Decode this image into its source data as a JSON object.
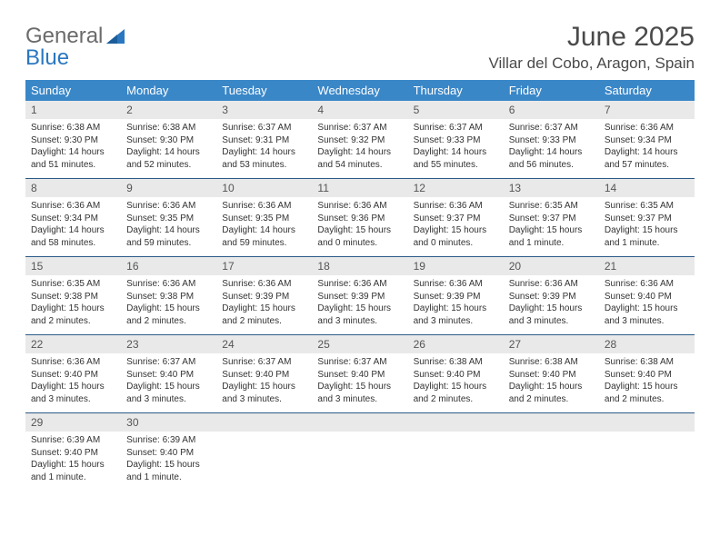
{
  "logo": {
    "part1": "General",
    "part2": "Blue"
  },
  "title": "June 2025",
  "location": "Villar del Cobo, Aragon, Spain",
  "colors": {
    "header_bg": "#3a87c8",
    "header_text": "#ffffff",
    "daynum_bg": "#e9e9e9",
    "week_border": "#2a5a88",
    "logo_gray": "#6b6b6b",
    "logo_blue": "#2a77c0",
    "body_text": "#333333"
  },
  "days_of_week": [
    "Sunday",
    "Monday",
    "Tuesday",
    "Wednesday",
    "Thursday",
    "Friday",
    "Saturday"
  ],
  "weeks": [
    {
      "nums": [
        "1",
        "2",
        "3",
        "4",
        "5",
        "6",
        "7"
      ],
      "cells": [
        {
          "sunrise": "Sunrise: 6:38 AM",
          "sunset": "Sunset: 9:30 PM",
          "day1": "Daylight: 14 hours",
          "day2": "and 51 minutes."
        },
        {
          "sunrise": "Sunrise: 6:38 AM",
          "sunset": "Sunset: 9:30 PM",
          "day1": "Daylight: 14 hours",
          "day2": "and 52 minutes."
        },
        {
          "sunrise": "Sunrise: 6:37 AM",
          "sunset": "Sunset: 9:31 PM",
          "day1": "Daylight: 14 hours",
          "day2": "and 53 minutes."
        },
        {
          "sunrise": "Sunrise: 6:37 AM",
          "sunset": "Sunset: 9:32 PM",
          "day1": "Daylight: 14 hours",
          "day2": "and 54 minutes."
        },
        {
          "sunrise": "Sunrise: 6:37 AM",
          "sunset": "Sunset: 9:33 PM",
          "day1": "Daylight: 14 hours",
          "day2": "and 55 minutes."
        },
        {
          "sunrise": "Sunrise: 6:37 AM",
          "sunset": "Sunset: 9:33 PM",
          "day1": "Daylight: 14 hours",
          "day2": "and 56 minutes."
        },
        {
          "sunrise": "Sunrise: 6:36 AM",
          "sunset": "Sunset: 9:34 PM",
          "day1": "Daylight: 14 hours",
          "day2": "and 57 minutes."
        }
      ]
    },
    {
      "nums": [
        "8",
        "9",
        "10",
        "11",
        "12",
        "13",
        "14"
      ],
      "cells": [
        {
          "sunrise": "Sunrise: 6:36 AM",
          "sunset": "Sunset: 9:34 PM",
          "day1": "Daylight: 14 hours",
          "day2": "and 58 minutes."
        },
        {
          "sunrise": "Sunrise: 6:36 AM",
          "sunset": "Sunset: 9:35 PM",
          "day1": "Daylight: 14 hours",
          "day2": "and 59 minutes."
        },
        {
          "sunrise": "Sunrise: 6:36 AM",
          "sunset": "Sunset: 9:35 PM",
          "day1": "Daylight: 14 hours",
          "day2": "and 59 minutes."
        },
        {
          "sunrise": "Sunrise: 6:36 AM",
          "sunset": "Sunset: 9:36 PM",
          "day1": "Daylight: 15 hours",
          "day2": "and 0 minutes."
        },
        {
          "sunrise": "Sunrise: 6:36 AM",
          "sunset": "Sunset: 9:37 PM",
          "day1": "Daylight: 15 hours",
          "day2": "and 0 minutes."
        },
        {
          "sunrise": "Sunrise: 6:35 AM",
          "sunset": "Sunset: 9:37 PM",
          "day1": "Daylight: 15 hours",
          "day2": "and 1 minute."
        },
        {
          "sunrise": "Sunrise: 6:35 AM",
          "sunset": "Sunset: 9:37 PM",
          "day1": "Daylight: 15 hours",
          "day2": "and 1 minute."
        }
      ]
    },
    {
      "nums": [
        "15",
        "16",
        "17",
        "18",
        "19",
        "20",
        "21"
      ],
      "cells": [
        {
          "sunrise": "Sunrise: 6:35 AM",
          "sunset": "Sunset: 9:38 PM",
          "day1": "Daylight: 15 hours",
          "day2": "and 2 minutes."
        },
        {
          "sunrise": "Sunrise: 6:36 AM",
          "sunset": "Sunset: 9:38 PM",
          "day1": "Daylight: 15 hours",
          "day2": "and 2 minutes."
        },
        {
          "sunrise": "Sunrise: 6:36 AM",
          "sunset": "Sunset: 9:39 PM",
          "day1": "Daylight: 15 hours",
          "day2": "and 2 minutes."
        },
        {
          "sunrise": "Sunrise: 6:36 AM",
          "sunset": "Sunset: 9:39 PM",
          "day1": "Daylight: 15 hours",
          "day2": "and 3 minutes."
        },
        {
          "sunrise": "Sunrise: 6:36 AM",
          "sunset": "Sunset: 9:39 PM",
          "day1": "Daylight: 15 hours",
          "day2": "and 3 minutes."
        },
        {
          "sunrise": "Sunrise: 6:36 AM",
          "sunset": "Sunset: 9:39 PM",
          "day1": "Daylight: 15 hours",
          "day2": "and 3 minutes."
        },
        {
          "sunrise": "Sunrise: 6:36 AM",
          "sunset": "Sunset: 9:40 PM",
          "day1": "Daylight: 15 hours",
          "day2": "and 3 minutes."
        }
      ]
    },
    {
      "nums": [
        "22",
        "23",
        "24",
        "25",
        "26",
        "27",
        "28"
      ],
      "cells": [
        {
          "sunrise": "Sunrise: 6:36 AM",
          "sunset": "Sunset: 9:40 PM",
          "day1": "Daylight: 15 hours",
          "day2": "and 3 minutes."
        },
        {
          "sunrise": "Sunrise: 6:37 AM",
          "sunset": "Sunset: 9:40 PM",
          "day1": "Daylight: 15 hours",
          "day2": "and 3 minutes."
        },
        {
          "sunrise": "Sunrise: 6:37 AM",
          "sunset": "Sunset: 9:40 PM",
          "day1": "Daylight: 15 hours",
          "day2": "and 3 minutes."
        },
        {
          "sunrise": "Sunrise: 6:37 AM",
          "sunset": "Sunset: 9:40 PM",
          "day1": "Daylight: 15 hours",
          "day2": "and 3 minutes."
        },
        {
          "sunrise": "Sunrise: 6:38 AM",
          "sunset": "Sunset: 9:40 PM",
          "day1": "Daylight: 15 hours",
          "day2": "and 2 minutes."
        },
        {
          "sunrise": "Sunrise: 6:38 AM",
          "sunset": "Sunset: 9:40 PM",
          "day1": "Daylight: 15 hours",
          "day2": "and 2 minutes."
        },
        {
          "sunrise": "Sunrise: 6:38 AM",
          "sunset": "Sunset: 9:40 PM",
          "day1": "Daylight: 15 hours",
          "day2": "and 2 minutes."
        }
      ]
    },
    {
      "nums": [
        "29",
        "30",
        "",
        "",
        "",
        "",
        ""
      ],
      "cells": [
        {
          "sunrise": "Sunrise: 6:39 AM",
          "sunset": "Sunset: 9:40 PM",
          "day1": "Daylight: 15 hours",
          "day2": "and 1 minute."
        },
        {
          "sunrise": "Sunrise: 6:39 AM",
          "sunset": "Sunset: 9:40 PM",
          "day1": "Daylight: 15 hours",
          "day2": "and 1 minute."
        },
        null,
        null,
        null,
        null,
        null
      ]
    }
  ]
}
